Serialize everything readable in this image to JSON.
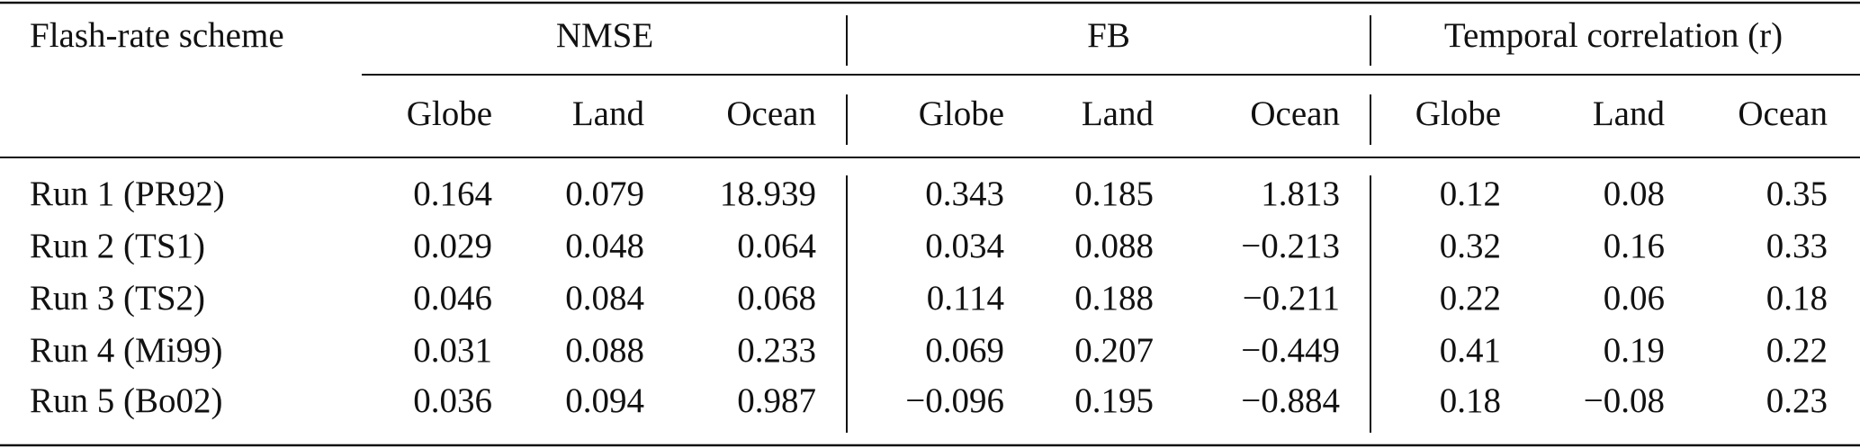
{
  "table": {
    "header": {
      "first": "Flash-rate scheme",
      "groups": [
        "NMSE",
        "FB",
        "Temporal correlation (r)"
      ],
      "subheaders": [
        "Globe",
        "Land",
        "Ocean",
        "Globe",
        "Land",
        "Ocean",
        "Globe",
        "Land",
        "Ocean"
      ]
    },
    "rows": [
      [
        "Run 1 (PR92)",
        "0.164",
        "0.079",
        "18.939",
        "0.343",
        "0.185",
        "1.813",
        "0.12",
        "0.08",
        "0.35"
      ],
      [
        "Run 2 (TS1)",
        "0.029",
        "0.048",
        "0.064",
        "0.034",
        "0.088",
        "−0.213",
        "0.32",
        "0.16",
        "0.33"
      ],
      [
        "Run 3 (TS2)",
        "0.046",
        "0.084",
        "0.068",
        "0.114",
        "0.188",
        "−0.211",
        "0.22",
        "0.06",
        "0.18"
      ],
      [
        "Run 4 (Mi99)",
        "0.031",
        "0.088",
        "0.233",
        "0.069",
        "0.207",
        "−0.449",
        "0.41",
        "0.19",
        "0.22"
      ],
      [
        "Run 5 (Bo02)",
        "0.036",
        "0.094",
        "0.987",
        "−0.096",
        "0.195",
        "−0.884",
        "0.18",
        "−0.08",
        "0.23"
      ]
    ]
  }
}
